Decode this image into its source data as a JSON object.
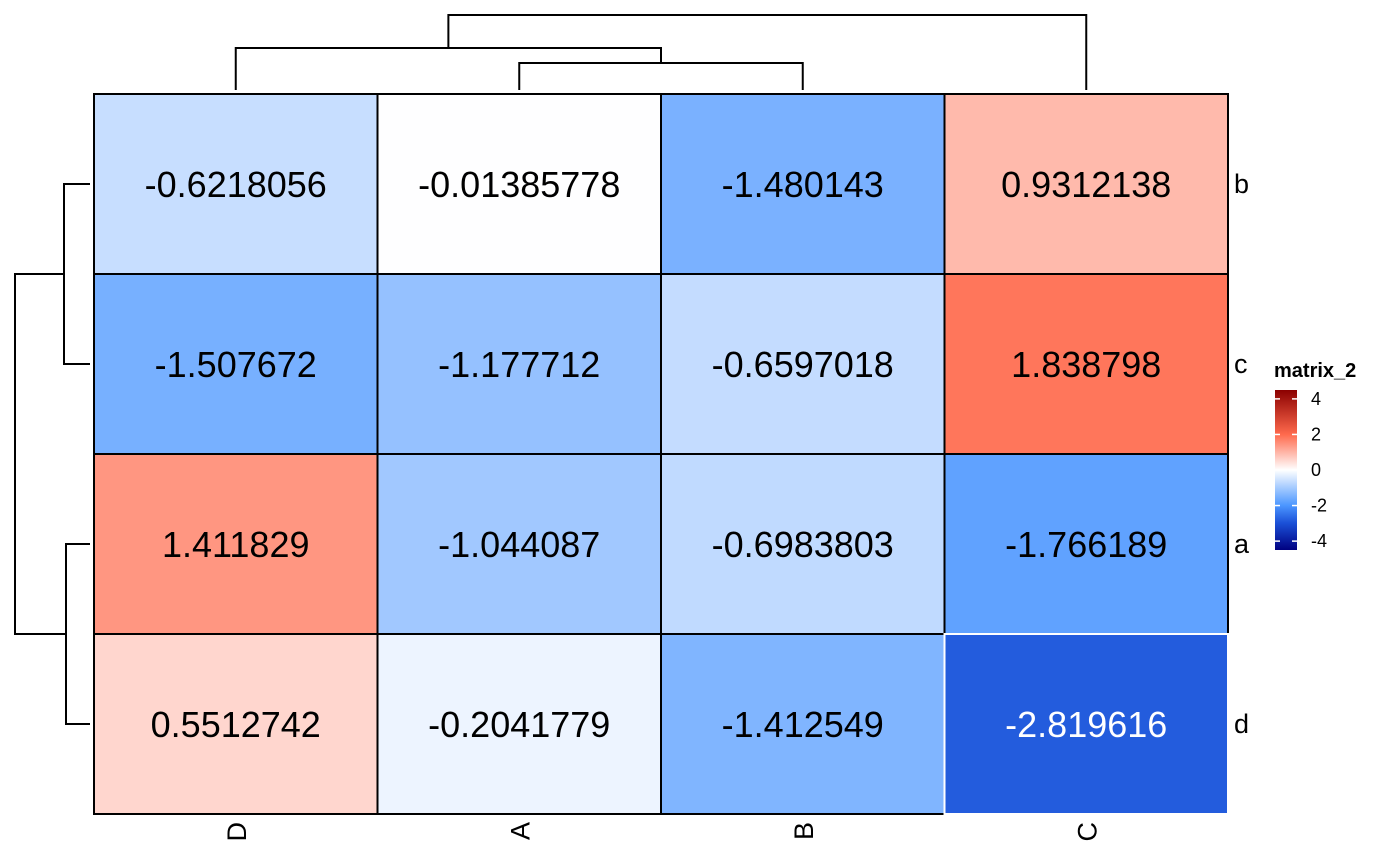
{
  "chart_data": {
    "type": "heatmap",
    "columns": [
      "D",
      "A",
      "B",
      "C"
    ],
    "rows": [
      "b",
      "c",
      "a",
      "d"
    ],
    "cells": [
      [
        {
          "label": "-0.6218056",
          "value": -0.6218056
        },
        {
          "label": "-0.01385778",
          "value": -0.01385778
        },
        {
          "label": "-1.480143",
          "value": -1.480143
        },
        {
          "label": "0.9312138",
          "value": 0.9312138
        }
      ],
      [
        {
          "label": "-1.507672",
          "value": -1.507672
        },
        {
          "label": "-1.177712",
          "value": -1.177712
        },
        {
          "label": "-0.6597018",
          "value": -0.6597018
        },
        {
          "label": "1.838798",
          "value": 1.838798
        }
      ],
      [
        {
          "label": "1.411829",
          "value": 1.411829
        },
        {
          "label": "-1.044087",
          "value": -1.044087
        },
        {
          "label": "-0.6983803",
          "value": -0.6983803
        },
        {
          "label": "-1.766189",
          "value": -1.766189
        }
      ],
      [
        {
          "label": "0.5512742",
          "value": 0.5512742
        },
        {
          "label": "-0.2041779",
          "value": -0.2041779
        },
        {
          "label": "-1.412549",
          "value": -1.412549
        },
        {
          "label": "-2.819616",
          "value": -2.819616
        }
      ]
    ],
    "legend": {
      "title": "matrix_2",
      "ticks": [
        "4",
        "2",
        "0",
        "-2",
        "-4"
      ],
      "tick_values": [
        4,
        2,
        0,
        -2,
        -4
      ],
      "range": [
        -4.5,
        4.5
      ],
      "placement": "right"
    },
    "color_scale": {
      "stops": [
        {
          "value": -4.5,
          "color": "#000080"
        },
        {
          "value": -3,
          "color": "#1a4fd6"
        },
        {
          "value": -2,
          "color": "#4b96ff"
        },
        {
          "value": 0,
          "color": "#ffffff"
        },
        {
          "value": 2,
          "color": "#ff6a4d"
        },
        {
          "value": 4.5,
          "color": "#8b0000"
        }
      ]
    },
    "column_dendrogram": "D|(A,B)|C",
    "row_dendrogram": "(b,c)|(a,d)"
  }
}
